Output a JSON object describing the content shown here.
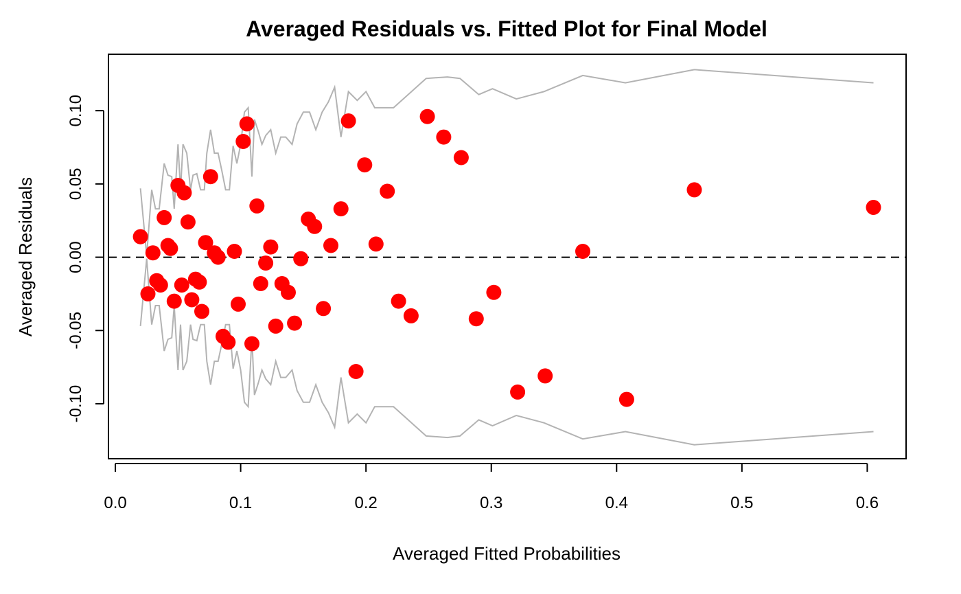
{
  "chart_data": {
    "type": "scatter",
    "title": "Averaged Residuals vs. Fitted Plot for Final Model",
    "xlabel": "Averaged Fitted Probabilities",
    "ylabel": "Averaged Residuals",
    "xlim": [
      -0.0055,
      0.631
    ],
    "ylim": [
      -0.1375,
      0.1385
    ],
    "x_ticks": [
      0.0,
      0.1,
      0.2,
      0.3,
      0.4,
      0.5,
      0.6
    ],
    "x_tick_labels": [
      "0.0",
      "0.1",
      "0.2",
      "0.3",
      "0.4",
      "0.5",
      "0.6"
    ],
    "y_ticks": [
      -0.1,
      -0.05,
      0.0,
      0.05,
      0.1
    ],
    "y_tick_labels": [
      "-0.10",
      "-0.05",
      "0.00",
      "0.05",
      "0.10"
    ],
    "reference_line": {
      "y": 0,
      "style": "dashed",
      "color": "#000000"
    },
    "grid": false,
    "legend": "none",
    "colors": {
      "points": "#ff0000",
      "band": "#b3b3b3",
      "axes": "#000000"
    },
    "band_upper": [
      [
        0.02,
        0.047
      ],
      [
        0.025,
        0.001
      ],
      [
        0.029,
        0.046
      ],
      [
        0.032,
        0.033
      ],
      [
        0.035,
        0.033
      ],
      [
        0.039,
        0.064
      ],
      [
        0.042,
        0.056
      ],
      [
        0.045,
        0.055
      ],
      [
        0.047,
        0.033
      ],
      [
        0.05,
        0.077
      ],
      [
        0.052,
        0.046
      ],
      [
        0.054,
        0.077
      ],
      [
        0.057,
        0.071
      ],
      [
        0.06,
        0.046
      ],
      [
        0.062,
        0.056
      ],
      [
        0.065,
        0.057
      ],
      [
        0.068,
        0.046
      ],
      [
        0.071,
        0.046
      ],
      [
        0.073,
        0.071
      ],
      [
        0.076,
        0.087
      ],
      [
        0.079,
        0.071
      ],
      [
        0.082,
        0.071
      ],
      [
        0.085,
        0.059
      ],
      [
        0.088,
        0.046
      ],
      [
        0.091,
        0.046
      ],
      [
        0.094,
        0.076
      ],
      [
        0.097,
        0.064
      ],
      [
        0.1,
        0.077
      ],
      [
        0.103,
        0.099
      ],
      [
        0.106,
        0.102
      ],
      [
        0.109,
        0.055
      ],
      [
        0.111,
        0.094
      ],
      [
        0.114,
        0.086
      ],
      [
        0.117,
        0.077
      ],
      [
        0.12,
        0.083
      ],
      [
        0.124,
        0.087
      ],
      [
        0.128,
        0.071
      ],
      [
        0.132,
        0.082
      ],
      [
        0.136,
        0.082
      ],
      [
        0.141,
        0.077
      ],
      [
        0.145,
        0.091
      ],
      [
        0.15,
        0.099
      ],
      [
        0.155,
        0.099
      ],
      [
        0.16,
        0.087
      ],
      [
        0.165,
        0.099
      ],
      [
        0.17,
        0.106
      ],
      [
        0.175,
        0.116
      ],
      [
        0.18,
        0.082
      ],
      [
        0.186,
        0.113
      ],
      [
        0.193,
        0.107
      ],
      [
        0.2,
        0.113
      ],
      [
        0.207,
        0.102
      ],
      [
        0.222,
        0.102
      ],
      [
        0.248,
        0.122
      ],
      [
        0.265,
        0.123
      ],
      [
        0.275,
        0.122
      ],
      [
        0.29,
        0.111
      ],
      [
        0.301,
        0.115
      ],
      [
        0.32,
        0.108
      ],
      [
        0.342,
        0.113
      ],
      [
        0.373,
        0.124
      ],
      [
        0.407,
        0.119
      ],
      [
        0.462,
        0.128
      ],
      [
        0.605,
        0.119
      ]
    ],
    "band_lower": [
      [
        0.02,
        -0.047
      ],
      [
        0.025,
        -0.001
      ],
      [
        0.029,
        -0.046
      ],
      [
        0.032,
        -0.033
      ],
      [
        0.035,
        -0.033
      ],
      [
        0.039,
        -0.064
      ],
      [
        0.042,
        -0.056
      ],
      [
        0.045,
        -0.055
      ],
      [
        0.047,
        -0.033
      ],
      [
        0.05,
        -0.077
      ],
      [
        0.052,
        -0.046
      ],
      [
        0.054,
        -0.077
      ],
      [
        0.057,
        -0.071
      ],
      [
        0.06,
        -0.046
      ],
      [
        0.062,
        -0.056
      ],
      [
        0.065,
        -0.057
      ],
      [
        0.068,
        -0.046
      ],
      [
        0.071,
        -0.046
      ],
      [
        0.073,
        -0.071
      ],
      [
        0.076,
        -0.087
      ],
      [
        0.079,
        -0.071
      ],
      [
        0.082,
        -0.071
      ],
      [
        0.085,
        -0.059
      ],
      [
        0.088,
        -0.046
      ],
      [
        0.091,
        -0.046
      ],
      [
        0.094,
        -0.076
      ],
      [
        0.097,
        -0.064
      ],
      [
        0.1,
        -0.077
      ],
      [
        0.103,
        -0.099
      ],
      [
        0.106,
        -0.102
      ],
      [
        0.109,
        -0.055
      ],
      [
        0.111,
        -0.094
      ],
      [
        0.114,
        -0.086
      ],
      [
        0.117,
        -0.077
      ],
      [
        0.12,
        -0.083
      ],
      [
        0.124,
        -0.087
      ],
      [
        0.128,
        -0.071
      ],
      [
        0.132,
        -0.082
      ],
      [
        0.136,
        -0.082
      ],
      [
        0.141,
        -0.077
      ],
      [
        0.145,
        -0.091
      ],
      [
        0.15,
        -0.099
      ],
      [
        0.155,
        -0.099
      ],
      [
        0.16,
        -0.087
      ],
      [
        0.165,
        -0.099
      ],
      [
        0.17,
        -0.106
      ],
      [
        0.175,
        -0.116
      ],
      [
        0.18,
        -0.082
      ],
      [
        0.186,
        -0.113
      ],
      [
        0.193,
        -0.107
      ],
      [
        0.2,
        -0.113
      ],
      [
        0.207,
        -0.102
      ],
      [
        0.222,
        -0.102
      ],
      [
        0.248,
        -0.122
      ],
      [
        0.265,
        -0.123
      ],
      [
        0.275,
        -0.122
      ],
      [
        0.29,
        -0.111
      ],
      [
        0.301,
        -0.115
      ],
      [
        0.32,
        -0.108
      ],
      [
        0.342,
        -0.113
      ],
      [
        0.373,
        -0.124
      ],
      [
        0.407,
        -0.119
      ],
      [
        0.462,
        -0.128
      ],
      [
        0.605,
        -0.119
      ]
    ],
    "points": [
      [
        0.02,
        0.014
      ],
      [
        0.026,
        -0.025
      ],
      [
        0.03,
        0.003
      ],
      [
        0.033,
        -0.016
      ],
      [
        0.036,
        -0.019
      ],
      [
        0.039,
        0.027
      ],
      [
        0.042,
        0.008
      ],
      [
        0.044,
        0.006
      ],
      [
        0.047,
        -0.03
      ],
      [
        0.05,
        0.049
      ],
      [
        0.053,
        -0.019
      ],
      [
        0.055,
        0.044
      ],
      [
        0.058,
        0.024
      ],
      [
        0.061,
        -0.029
      ],
      [
        0.064,
        -0.015
      ],
      [
        0.067,
        -0.017
      ],
      [
        0.069,
        -0.037
      ],
      [
        0.072,
        0.01
      ],
      [
        0.076,
        0.055
      ],
      [
        0.079,
        0.003
      ],
      [
        0.082,
        0.0
      ],
      [
        0.086,
        -0.054
      ],
      [
        0.09,
        -0.058
      ],
      [
        0.095,
        0.004
      ],
      [
        0.098,
        -0.032
      ],
      [
        0.102,
        0.079
      ],
      [
        0.105,
        0.091
      ],
      [
        0.109,
        -0.059
      ],
      [
        0.113,
        0.035
      ],
      [
        0.116,
        -0.018
      ],
      [
        0.12,
        -0.004
      ],
      [
        0.124,
        0.007
      ],
      [
        0.128,
        -0.047
      ],
      [
        0.133,
        -0.018
      ],
      [
        0.138,
        -0.024
      ],
      [
        0.143,
        -0.045
      ],
      [
        0.148,
        -0.001
      ],
      [
        0.154,
        0.026
      ],
      [
        0.159,
        0.021
      ],
      [
        0.166,
        -0.035
      ],
      [
        0.172,
        0.008
      ],
      [
        0.18,
        0.033
      ],
      [
        0.186,
        0.093
      ],
      [
        0.192,
        -0.078
      ],
      [
        0.199,
        0.063
      ],
      [
        0.208,
        0.009
      ],
      [
        0.217,
        0.045
      ],
      [
        0.226,
        -0.03
      ],
      [
        0.236,
        -0.04
      ],
      [
        0.249,
        0.096
      ],
      [
        0.262,
        0.082
      ],
      [
        0.276,
        0.068
      ],
      [
        0.288,
        -0.042
      ],
      [
        0.302,
        -0.024
      ],
      [
        0.321,
        -0.092
      ],
      [
        0.343,
        -0.081
      ],
      [
        0.373,
        0.004
      ],
      [
        0.408,
        -0.097
      ],
      [
        0.462,
        0.046
      ],
      [
        0.605,
        0.034
      ]
    ]
  }
}
